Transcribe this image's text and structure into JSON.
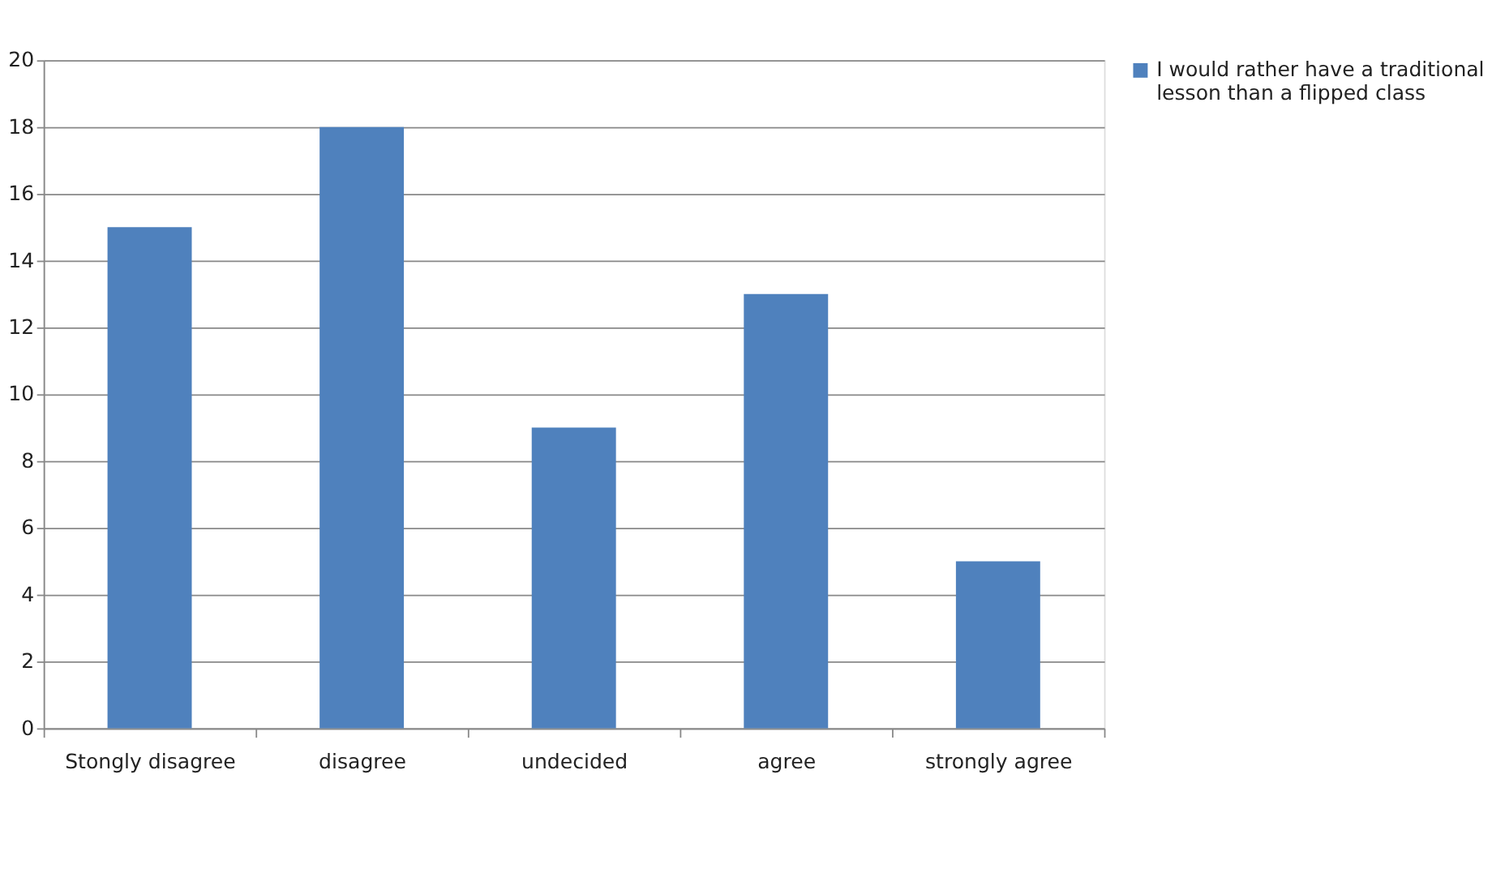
{
  "chart_data": {
    "type": "bar",
    "categories": [
      "Stongly disagree",
      "disagree",
      "undecided",
      "agree",
      "strongly agree"
    ],
    "series": [
      {
        "name": "I would rather have a traditional lesson than a flipped class",
        "color": "#4f81bd",
        "values": [
          15,
          18,
          9,
          13,
          5
        ]
      }
    ],
    "ylim": [
      0,
      20
    ],
    "yticks": [
      0,
      2,
      4,
      6,
      8,
      10,
      12,
      14,
      16,
      18,
      20
    ],
    "grid": "y",
    "legend": "top right"
  }
}
